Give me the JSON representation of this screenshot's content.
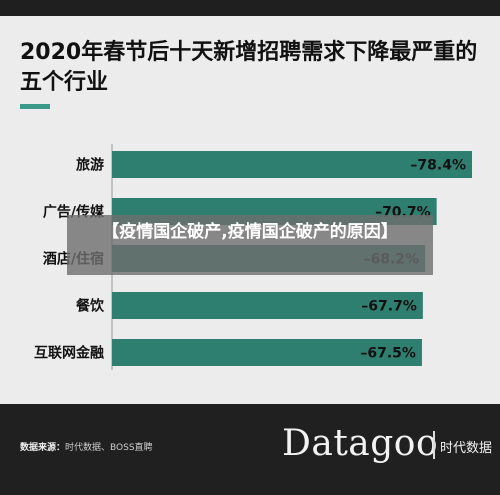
{
  "overlay_text": "【疫情国企破产,疫情国企破产的原因】",
  "footer": {
    "source_label": "数据来源：",
    "source_text": "时代数据、BOSS直聘",
    "logo": "Datagoo",
    "logo_sub": "时代数据"
  },
  "colors": {
    "bar": "#2f7f70",
    "accent": "#3a9a8a"
  },
  "chart_data": {
    "type": "bar",
    "orientation": "horizontal",
    "title": "2020年春节后十天新增招聘需求下降最严重的五个行业",
    "categories": [
      "旅游",
      "广告/传媒",
      "酒店/住宿",
      "餐饮",
      "互联网金融"
    ],
    "values": [
      -78.4,
      -70.7,
      -68.2,
      -67.7,
      -67.5
    ],
    "value_labels": [
      "–78.4%",
      "–70.7%",
      "–68.2%",
      "–67.7%",
      "–67.5%"
    ],
    "unit": "%",
    "xlim": [
      0,
      -78.4
    ],
    "grid": false,
    "legend": "none"
  }
}
